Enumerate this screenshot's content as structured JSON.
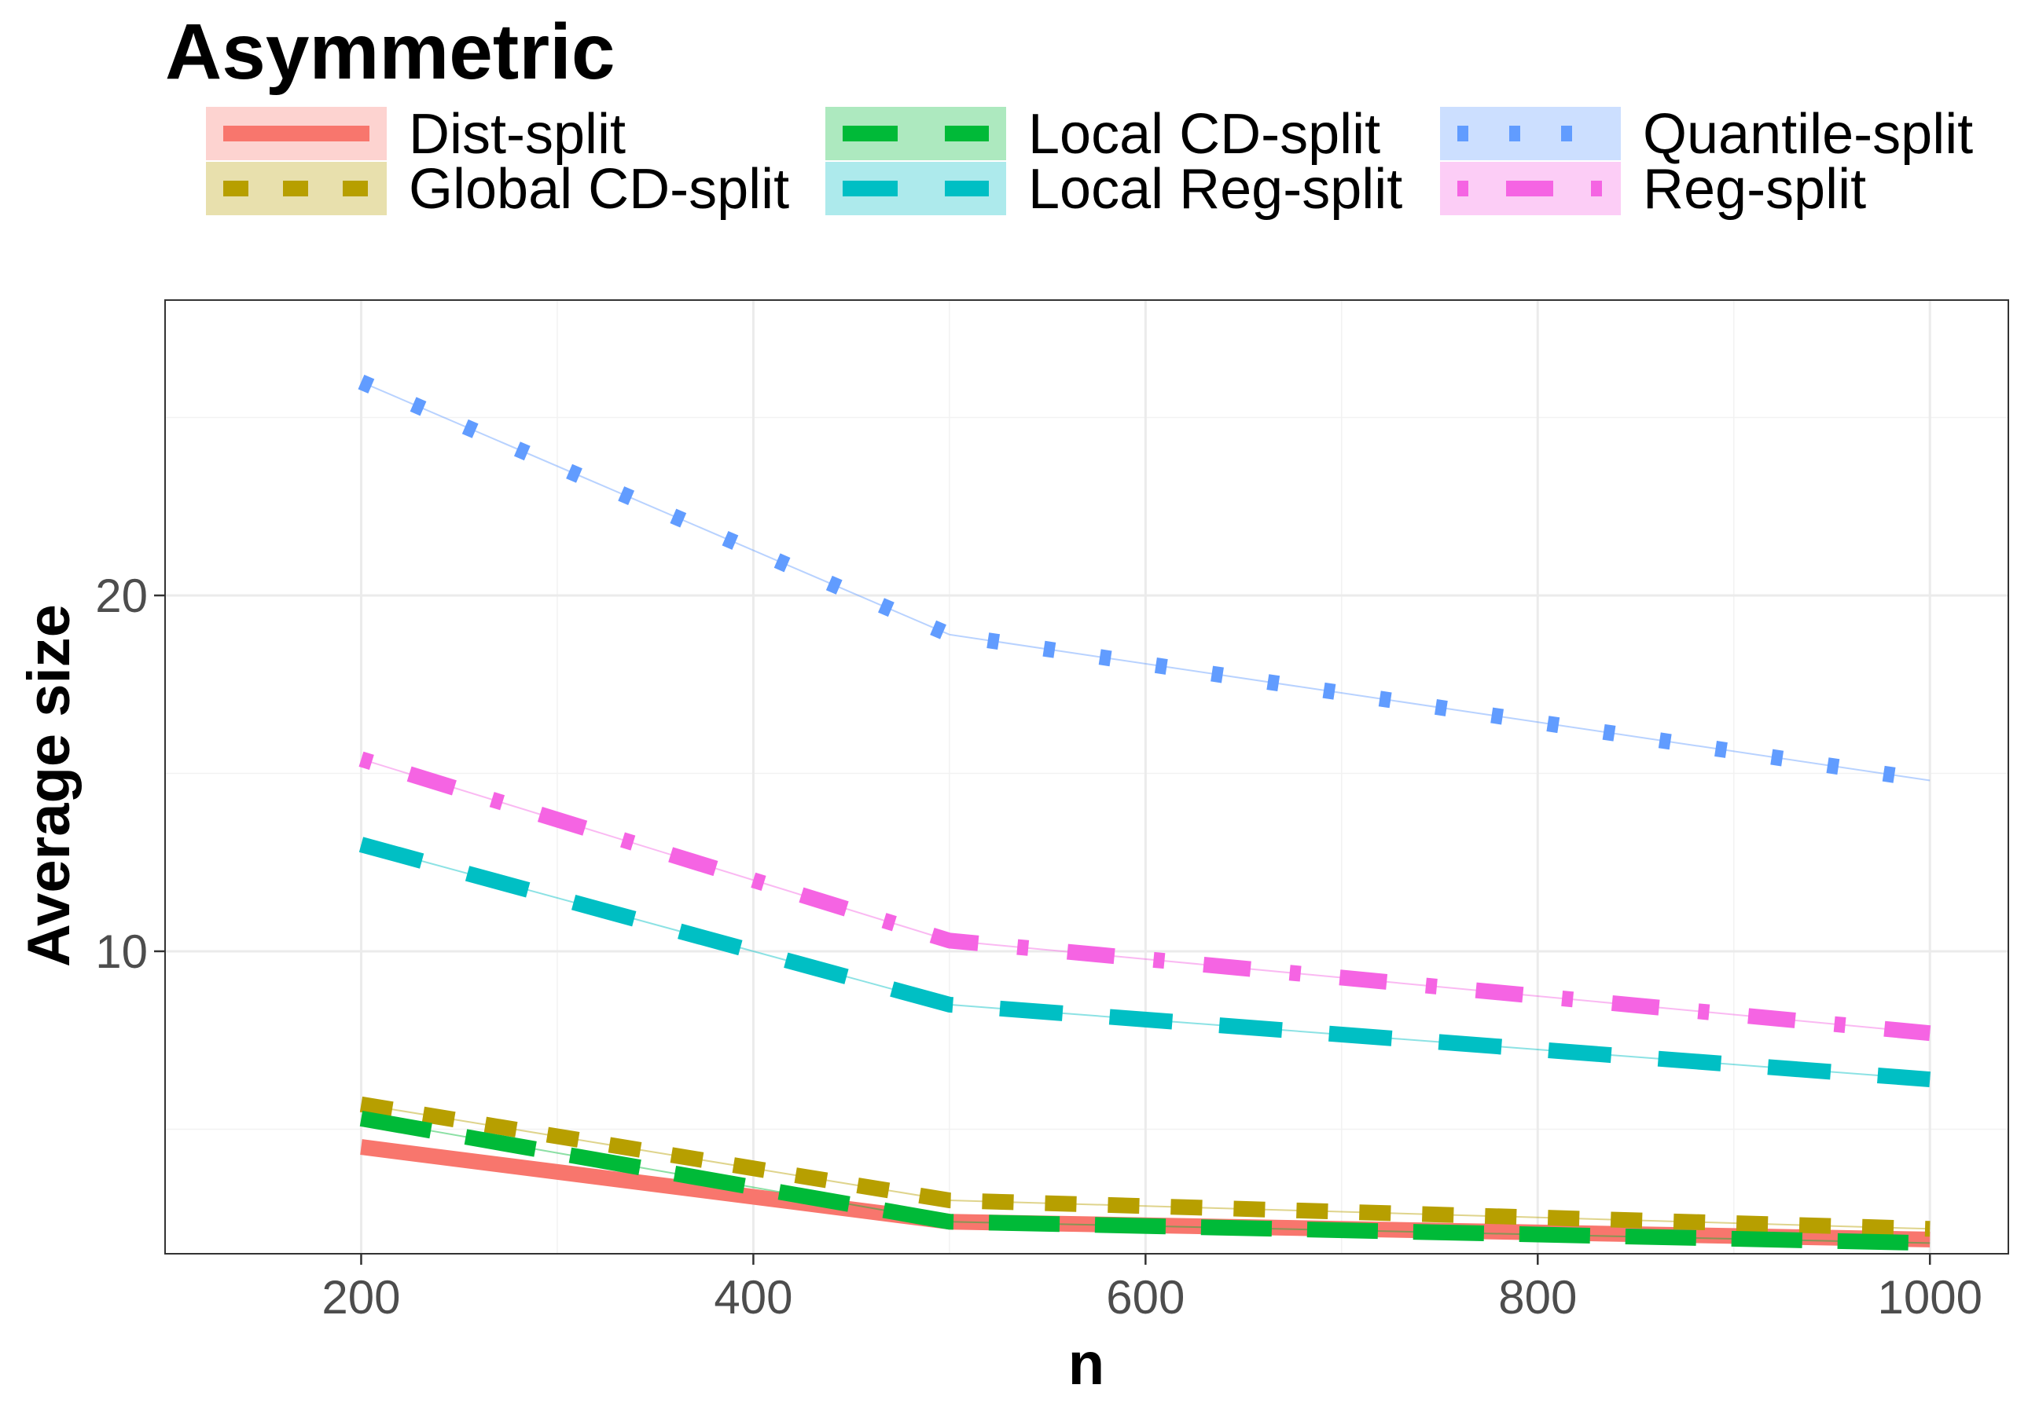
{
  "chart_data": {
    "type": "line",
    "title": "Asymmetric",
    "xlabel": "n",
    "ylabel": "Average size",
    "x": [
      200,
      500,
      1000
    ],
    "xlim": [
      100,
      1040
    ],
    "ylim": [
      1.5,
      28.3
    ],
    "xticks": [
      200,
      400,
      600,
      800,
      1000
    ],
    "yticks": [
      10,
      20
    ],
    "grid": true,
    "legend_position": "top",
    "series": [
      {
        "name": "Dist-split",
        "values": [
          4.5,
          2.4,
          1.9
        ],
        "color": "#F8766D",
        "dash": "solid"
      },
      {
        "name": "Global CD-split",
        "values": [
          5.7,
          3.0,
          2.2
        ],
        "color": "#B79F00",
        "dash": "dashed"
      },
      {
        "name": "Local CD-split",
        "values": [
          5.3,
          2.4,
          1.8
        ],
        "color": "#00BA38",
        "dash": "longdash"
      },
      {
        "name": "Local Reg-split",
        "values": [
          13.0,
          8.5,
          6.4
        ],
        "color": "#00BFC4",
        "dash": "longdash2"
      },
      {
        "name": "Quantile-split",
        "values": [
          26.0,
          18.9,
          14.8
        ],
        "color": "#619CFF",
        "dash": "dotted"
      },
      {
        "name": "Reg-split",
        "values": [
          15.4,
          10.3,
          7.7
        ],
        "color": "#F564E3",
        "dash": "dotdash"
      }
    ]
  }
}
